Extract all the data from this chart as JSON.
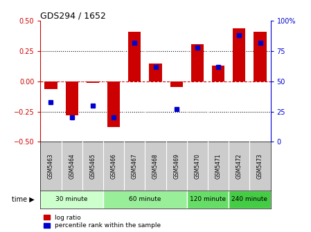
{
  "title": "GDS294 / 1652",
  "samples": [
    "GSM5463",
    "GSM5464",
    "GSM5465",
    "GSM5466",
    "GSM5467",
    "GSM5468",
    "GSM5469",
    "GSM5470",
    "GSM5471",
    "GSM5472",
    "GSM5473"
  ],
  "log_ratio": [
    -0.065,
    -0.28,
    -0.01,
    -0.38,
    0.41,
    0.15,
    -0.045,
    0.31,
    0.13,
    0.44,
    0.41
  ],
  "percentile_rank": [
    33,
    20,
    30,
    20,
    82,
    62,
    27,
    78,
    62,
    88,
    82
  ],
  "bar_color": "#cc0000",
  "dot_color": "#0000cc",
  "ylim_left": [
    -0.5,
    0.5
  ],
  "ylim_right": [
    0,
    100
  ],
  "yticks_left": [
    -0.5,
    -0.25,
    0.0,
    0.25,
    0.5
  ],
  "yticks_right": [
    0,
    25,
    50,
    75,
    100
  ],
  "hlines": [
    -0.25,
    0.0,
    0.25
  ],
  "groups": [
    {
      "label": "30 minute",
      "start": 0,
      "end": 3,
      "color": "#ccffcc"
    },
    {
      "label": "60 minute",
      "start": 3,
      "end": 7,
      "color": "#99ee99"
    },
    {
      "label": "120 minute",
      "start": 7,
      "end": 9,
      "color": "#66dd66"
    },
    {
      "label": "240 minute",
      "start": 9,
      "end": 11,
      "color": "#44cc44"
    }
  ],
  "time_label": "time",
  "legend_bar_label": "log ratio",
  "legend_dot_label": "percentile rank within the sample",
  "background_color": "#ffffff",
  "tick_label_bg": "#cccccc",
  "bar_width": 0.6,
  "dot_marker_size": 4
}
